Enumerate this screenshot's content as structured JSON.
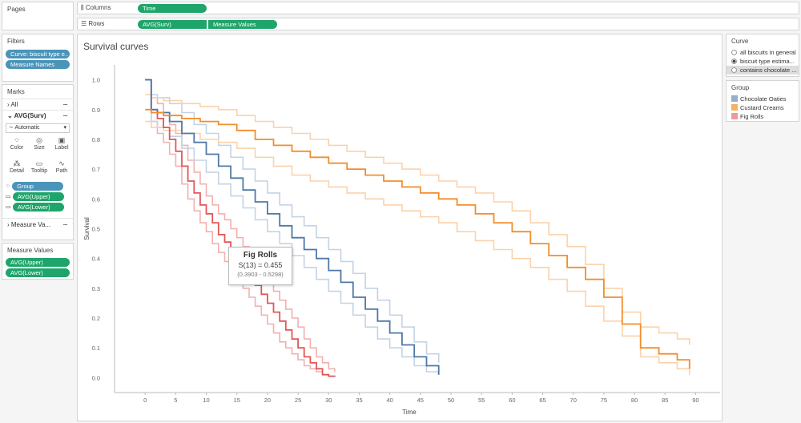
{
  "shelves": {
    "columns_label": "Columns",
    "columns_pill": "Time",
    "rows_label": "Rows",
    "rows_pills": [
      "AVG(Surv)",
      "Measure Values"
    ]
  },
  "pages": {
    "title": "Pages"
  },
  "filters": {
    "title": "Filters",
    "items": [
      "Curve: biscuit type e..",
      "Measure Names"
    ]
  },
  "marks": {
    "title": "Marks",
    "all_label": "All",
    "card_label": "AVG(Surv)",
    "type": "Automatic",
    "buttons": [
      "Color",
      "Size",
      "Label",
      "Detail",
      "Tooltip",
      "Path"
    ],
    "fields": [
      "Group",
      "AVG(Upper)",
      "AVG(Lower)"
    ],
    "measure_va_label": "Measure Va..."
  },
  "measure_values": {
    "title": "Measure Values",
    "items": [
      "AVG(Upper)",
      "AVG(Lower)"
    ]
  },
  "curve_filter": {
    "title": "Curve",
    "options": [
      "all biscuits in general",
      "biscuit type estima...",
      "contains chocolate ..."
    ],
    "selected_index": 1
  },
  "group_legend": {
    "title": "Group",
    "items": [
      {
        "label": "Chocolate Oaties",
        "color": "#4e79a7"
      },
      {
        "label": "Custard Creams",
        "color": "#f28e2b"
      },
      {
        "label": "Fig Rolls",
        "color": "#e15759"
      }
    ]
  },
  "tooltip": {
    "title": "Fig Rolls",
    "value": "S(13) = 0.455",
    "interval": "(0.3903 - 0.5298)"
  },
  "chart_data": {
    "type": "line",
    "title": "Survival curves",
    "xlabel": "Time",
    "ylabel": "Survival",
    "xlim": [
      -5,
      94
    ],
    "ylim": [
      -0.05,
      1.05
    ],
    "x_ticks": [
      0,
      5,
      10,
      15,
      20,
      25,
      30,
      35,
      40,
      45,
      50,
      55,
      60,
      65,
      70,
      75,
      80,
      85,
      90
    ],
    "y_ticks": [
      0.0,
      0.1,
      0.2,
      0.3,
      0.4,
      0.5,
      0.6,
      0.7,
      0.8,
      0.9,
      1.0
    ],
    "y_tick_labels": [
      "0.0",
      "0.1",
      "0.2",
      "0.3",
      "0.4",
      "0.5",
      "0.6",
      "0.7",
      "0.8",
      "0.9",
      "1.0"
    ],
    "series": [
      {
        "name": "Fig Rolls",
        "color": "#e15759",
        "light": "#f2b0b0",
        "x": [
          0,
          1,
          2,
          3,
          4,
          5,
          6,
          7,
          8,
          9,
          10,
          11,
          12,
          13,
          14,
          15,
          16,
          17,
          18,
          19,
          20,
          21,
          22,
          23,
          24,
          25,
          26,
          27,
          28,
          29,
          30,
          31
        ],
        "surv": [
          1.0,
          0.9,
          0.87,
          0.84,
          0.8,
          0.76,
          0.71,
          0.66,
          0.62,
          0.58,
          0.55,
          0.52,
          0.48,
          0.455,
          0.43,
          0.4,
          0.37,
          0.34,
          0.31,
          0.28,
          0.25,
          0.22,
          0.19,
          0.16,
          0.13,
          0.1,
          0.07,
          0.05,
          0.03,
          0.01,
          0.005,
          0.003
        ],
        "upper": [
          1.0,
          0.94,
          0.92,
          0.89,
          0.85,
          0.82,
          0.78,
          0.73,
          0.69,
          0.65,
          0.61,
          0.58,
          0.55,
          0.53,
          0.5,
          0.47,
          0.44,
          0.41,
          0.38,
          0.35,
          0.32,
          0.29,
          0.26,
          0.23,
          0.2,
          0.17,
          0.13,
          0.1,
          0.07,
          0.05,
          0.03,
          0.02
        ],
        "lower": [
          1.0,
          0.86,
          0.82,
          0.79,
          0.75,
          0.71,
          0.65,
          0.6,
          0.56,
          0.52,
          0.49,
          0.45,
          0.42,
          0.39,
          0.36,
          0.33,
          0.3,
          0.27,
          0.24,
          0.21,
          0.18,
          0.15,
          0.12,
          0.1,
          0.08,
          0.06,
          0.04,
          0.03,
          0.02,
          0.01,
          0.005,
          0.003
        ]
      },
      {
        "name": "Chocolate Oaties",
        "color": "#4e79a7",
        "light": "#c4d3e5",
        "x": [
          0,
          1,
          2,
          4,
          6,
          8,
          10,
          12,
          14,
          16,
          18,
          20,
          22,
          24,
          26,
          28,
          30,
          32,
          34,
          36,
          38,
          40,
          42,
          44,
          46,
          48
        ],
        "surv": [
          1.0,
          0.9,
          0.89,
          0.86,
          0.82,
          0.79,
          0.75,
          0.71,
          0.67,
          0.63,
          0.59,
          0.55,
          0.51,
          0.47,
          0.43,
          0.4,
          0.36,
          0.32,
          0.27,
          0.23,
          0.19,
          0.15,
          0.11,
          0.07,
          0.04,
          0.01
        ],
        "upper": [
          1.0,
          0.95,
          0.94,
          0.92,
          0.89,
          0.85,
          0.82,
          0.78,
          0.74,
          0.7,
          0.66,
          0.62,
          0.58,
          0.54,
          0.51,
          0.47,
          0.43,
          0.39,
          0.35,
          0.3,
          0.26,
          0.21,
          0.17,
          0.12,
          0.08,
          0.05
        ],
        "lower": [
          1.0,
          0.86,
          0.84,
          0.81,
          0.77,
          0.73,
          0.69,
          0.65,
          0.61,
          0.57,
          0.53,
          0.49,
          0.45,
          0.41,
          0.37,
          0.33,
          0.29,
          0.25,
          0.21,
          0.17,
          0.13,
          0.1,
          0.07,
          0.04,
          0.02,
          0.01
        ]
      },
      {
        "name": "Custard Creams",
        "color": "#f28e2b",
        "light": "#fbd2aa",
        "x": [
          0,
          1,
          3,
          6,
          9,
          12,
          15,
          18,
          21,
          24,
          27,
          30,
          33,
          36,
          39,
          42,
          45,
          48,
          51,
          54,
          57,
          60,
          63,
          66,
          69,
          72,
          75,
          78,
          81,
          84,
          87,
          89
        ],
        "surv": [
          0.9,
          0.89,
          0.88,
          0.87,
          0.86,
          0.85,
          0.83,
          0.8,
          0.78,
          0.76,
          0.74,
          0.72,
          0.7,
          0.68,
          0.66,
          0.64,
          0.62,
          0.6,
          0.58,
          0.55,
          0.52,
          0.49,
          0.45,
          0.41,
          0.37,
          0.33,
          0.27,
          0.18,
          0.1,
          0.08,
          0.06,
          0.03
        ],
        "upper": [
          0.95,
          0.94,
          0.93,
          0.92,
          0.91,
          0.9,
          0.88,
          0.86,
          0.84,
          0.82,
          0.8,
          0.78,
          0.76,
          0.74,
          0.72,
          0.7,
          0.68,
          0.66,
          0.64,
          0.62,
          0.59,
          0.56,
          0.52,
          0.48,
          0.44,
          0.38,
          0.3,
          0.22,
          0.17,
          0.15,
          0.13,
          0.11
        ],
        "lower": [
          0.86,
          0.84,
          0.83,
          0.82,
          0.8,
          0.79,
          0.77,
          0.74,
          0.71,
          0.68,
          0.66,
          0.64,
          0.62,
          0.6,
          0.58,
          0.56,
          0.54,
          0.52,
          0.49,
          0.46,
          0.43,
          0.4,
          0.37,
          0.33,
          0.29,
          0.24,
          0.19,
          0.14,
          0.07,
          0.05,
          0.03,
          0.01
        ]
      }
    ],
    "legend": "right"
  }
}
